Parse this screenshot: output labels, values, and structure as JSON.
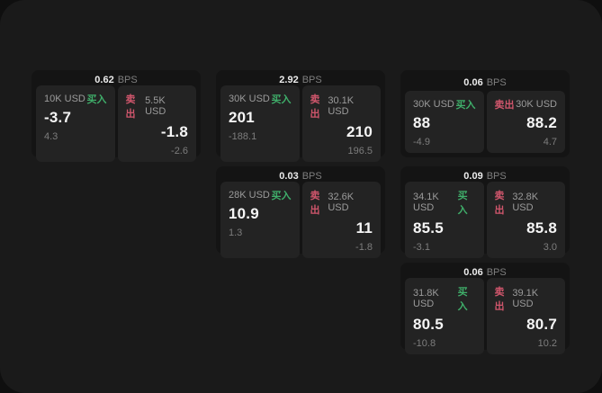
{
  "labels": {
    "bps_unit": "BPS",
    "buy": "买入",
    "sell": "卖出"
  },
  "colors": {
    "buy_accent": "#3fae6a",
    "sell_accent": "#d0566c",
    "page_bg": "#1a1a1a",
    "card_bg": "#141414",
    "panel_bg": "#232323"
  },
  "cards": [
    {
      "bps": "0.62",
      "buy": {
        "amount": "10K USD",
        "value": "-3.7",
        "sub": "4.3"
      },
      "sell": {
        "amount": "5.5K USD",
        "value": "-1.8",
        "sub": "-2.6"
      }
    },
    {
      "bps": "2.92",
      "buy": {
        "amount": "30K USD",
        "value": "201",
        "sub": "-188.1"
      },
      "sell": {
        "amount": "30.1K USD",
        "value": "210",
        "sub": "196.5"
      }
    },
    {
      "bps": "0.06",
      "buy": {
        "amount": "30K USD",
        "value": "88",
        "sub": "-4.9"
      },
      "sell": {
        "amount": "30K USD",
        "value": "88.2",
        "sub": "4.7"
      }
    },
    {
      "bps": "0.03",
      "buy": {
        "amount": "28K USD",
        "value": "10.9",
        "sub": "1.3"
      },
      "sell": {
        "amount": "32.6K USD",
        "value": "11",
        "sub": "-1.8"
      }
    },
    {
      "bps": "0.09",
      "buy": {
        "amount": "34.1K USD",
        "value": "85.5",
        "sub": "-3.1"
      },
      "sell": {
        "amount": "32.8K USD",
        "value": "85.8",
        "sub": "3.0"
      }
    },
    {
      "bps": "0.06",
      "buy": {
        "amount": "31.8K USD",
        "value": "80.5",
        "sub": "-10.8"
      },
      "sell": {
        "amount": "39.1K USD",
        "value": "80.7",
        "sub": "10.2"
      }
    }
  ]
}
